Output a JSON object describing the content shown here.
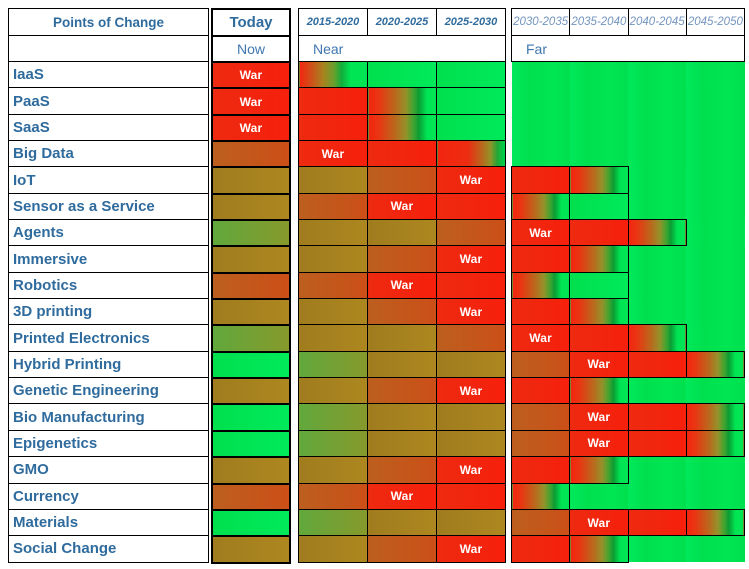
{
  "header": {
    "points_of_change": "Points of Change",
    "today": "Today",
    "now": "Now",
    "near": "Near",
    "far": "Far"
  },
  "war_label": "War",
  "colors": {
    "war_red": "#F3250F",
    "peace_green": "#00E554",
    "olive": "#A8831F",
    "orange": "#C5571D",
    "green_olive": "#6FA335",
    "label_blue": "#2F6B9D",
    "zone_blue": "#3F77AF",
    "far_header_blue": "#7395BF",
    "border_black": "#000000"
  },
  "chart_data": {
    "type": "heatmap",
    "title": "Points of Change",
    "legend": "red = War, green = peace; cells shade from green through olive/orange to red approaching a War period",
    "near_columns": [
      "2015-2020",
      "2020-2025",
      "2025-2030"
    ],
    "far_columns": [
      "2030-2035",
      "2035-2040",
      "2040-2045",
      "2045-2050"
    ],
    "rows": [
      {
        "label": "IaaS",
        "today": {
          "bg": "war-red",
          "war": true
        },
        "near": [
          {
            "bg": "grad-rg-early"
          },
          {
            "bg": "green"
          },
          {
            "bg": "green"
          }
        ],
        "far": [
          {
            "bg": "field"
          },
          {
            "bg": "field"
          },
          {
            "bg": "field"
          },
          {
            "bg": "field"
          }
        ]
      },
      {
        "label": "PaaS",
        "today": {
          "bg": "war-red",
          "war": true
        },
        "near": [
          {
            "bg": "war-red"
          },
          {
            "bg": "grad-rg"
          },
          {
            "bg": "green"
          }
        ],
        "far": [
          {
            "bg": "field"
          },
          {
            "bg": "field"
          },
          {
            "bg": "field"
          },
          {
            "bg": "field"
          }
        ]
      },
      {
        "label": "SaaS",
        "today": {
          "bg": "war-red",
          "war": true
        },
        "near": [
          {
            "bg": "war-red"
          },
          {
            "bg": "grad-rg"
          },
          {
            "bg": "green"
          }
        ],
        "far": [
          {
            "bg": "field"
          },
          {
            "bg": "field"
          },
          {
            "bg": "field"
          },
          {
            "bg": "field"
          }
        ]
      },
      {
        "label": "Big Data",
        "today": {
          "bg": "orange"
        },
        "near": [
          {
            "bg": "war-red",
            "war": true
          },
          {
            "bg": "war-red"
          },
          {
            "bg": "grad-rg-late"
          }
        ],
        "far": [
          {
            "bg": "field"
          },
          {
            "bg": "field"
          },
          {
            "bg": "field"
          },
          {
            "bg": "field"
          }
        ]
      },
      {
        "label": "IoT",
        "today": {
          "bg": "olive"
        },
        "near": [
          {
            "bg": "olive"
          },
          {
            "bg": "orange"
          },
          {
            "bg": "war-red",
            "war": true
          }
        ],
        "far": [
          {
            "bg": "war-red",
            "box": true
          },
          {
            "bg": "grad-rg",
            "box": true
          },
          {
            "bg": "field"
          },
          {
            "bg": "field"
          }
        ]
      },
      {
        "label": "Sensor as a Service",
        "today": {
          "bg": "olive"
        },
        "near": [
          {
            "bg": "orange"
          },
          {
            "bg": "war-red",
            "war": true
          },
          {
            "bg": "war-red"
          }
        ],
        "far": [
          {
            "bg": "grad-rg",
            "box": true
          },
          {
            "bg": "green",
            "box": true
          },
          {
            "bg": "field"
          },
          {
            "bg": "field"
          }
        ]
      },
      {
        "label": "Agents",
        "today": {
          "bg": "green-olive"
        },
        "near": [
          {
            "bg": "olive"
          },
          {
            "bg": "olive"
          },
          {
            "bg": "orange"
          }
        ],
        "far": [
          {
            "bg": "war-red",
            "war": true,
            "box": true
          },
          {
            "bg": "war-red",
            "box": true
          },
          {
            "bg": "grad-rg",
            "box": true
          },
          {
            "bg": "field"
          }
        ]
      },
      {
        "label": "Immersive",
        "today": {
          "bg": "olive"
        },
        "near": [
          {
            "bg": "olive"
          },
          {
            "bg": "orange"
          },
          {
            "bg": "war-red",
            "war": true
          }
        ],
        "far": [
          {
            "bg": "war-red",
            "box": true
          },
          {
            "bg": "grad-rg",
            "box": true
          },
          {
            "bg": "field"
          },
          {
            "bg": "field"
          }
        ]
      },
      {
        "label": "Robotics",
        "today": {
          "bg": "orange"
        },
        "near": [
          {
            "bg": "orange"
          },
          {
            "bg": "war-red",
            "war": true
          },
          {
            "bg": "war-red"
          }
        ],
        "far": [
          {
            "bg": "grad-rg",
            "box": true
          },
          {
            "bg": "green",
            "box": true
          },
          {
            "bg": "field"
          },
          {
            "bg": "field"
          }
        ]
      },
      {
        "label": "3D printing",
        "today": {
          "bg": "olive"
        },
        "near": [
          {
            "bg": "olive"
          },
          {
            "bg": "orange"
          },
          {
            "bg": "war-red",
            "war": true
          }
        ],
        "far": [
          {
            "bg": "war-red",
            "box": true
          },
          {
            "bg": "grad-rg",
            "box": true
          },
          {
            "bg": "field"
          },
          {
            "bg": "field"
          }
        ]
      },
      {
        "label": "Printed Electronics",
        "today": {
          "bg": "green-olive"
        },
        "near": [
          {
            "bg": "olive"
          },
          {
            "bg": "olive"
          },
          {
            "bg": "orange"
          }
        ],
        "far": [
          {
            "bg": "war-red",
            "war": true,
            "box": true
          },
          {
            "bg": "war-red",
            "box": true
          },
          {
            "bg": "grad-rg",
            "box": true
          },
          {
            "bg": "field"
          }
        ]
      },
      {
        "label": "Hybrid Printing",
        "today": {
          "bg": "green"
        },
        "near": [
          {
            "bg": "green-olive"
          },
          {
            "bg": "olive"
          },
          {
            "bg": "olive"
          }
        ],
        "far": [
          {
            "bg": "orange",
            "box": true
          },
          {
            "bg": "war-red",
            "war": true,
            "box": true
          },
          {
            "bg": "war-red",
            "box": true
          },
          {
            "bg": "grad-rg",
            "box": true
          }
        ]
      },
      {
        "label": "Genetic Engineering",
        "today": {
          "bg": "olive"
        },
        "near": [
          {
            "bg": "olive"
          },
          {
            "bg": "orange"
          },
          {
            "bg": "war-red",
            "war": true
          }
        ],
        "far": [
          {
            "bg": "war-red",
            "box": true
          },
          {
            "bg": "grad-rg",
            "box": true
          },
          {
            "bg": "field"
          },
          {
            "bg": "field"
          }
        ]
      },
      {
        "label": "Bio Manufacturing",
        "today": {
          "bg": "green"
        },
        "near": [
          {
            "bg": "green-olive"
          },
          {
            "bg": "olive"
          },
          {
            "bg": "olive"
          }
        ],
        "far": [
          {
            "bg": "orange",
            "box": true
          },
          {
            "bg": "war-red",
            "war": true,
            "box": true
          },
          {
            "bg": "war-red",
            "box": true
          },
          {
            "bg": "grad-rg",
            "box": true
          }
        ]
      },
      {
        "label": "Epigenetics",
        "today": {
          "bg": "green"
        },
        "near": [
          {
            "bg": "green-olive"
          },
          {
            "bg": "olive"
          },
          {
            "bg": "olive"
          }
        ],
        "far": [
          {
            "bg": "orange",
            "box": true
          },
          {
            "bg": "war-red",
            "war": true,
            "box": true
          },
          {
            "bg": "war-red",
            "box": true
          },
          {
            "bg": "grad-rg",
            "box": true
          }
        ]
      },
      {
        "label": "GMO",
        "today": {
          "bg": "olive"
        },
        "near": [
          {
            "bg": "olive"
          },
          {
            "bg": "orange"
          },
          {
            "bg": "war-red",
            "war": true
          }
        ],
        "far": [
          {
            "bg": "war-red",
            "box": true
          },
          {
            "bg": "grad-rg",
            "box": true
          },
          {
            "bg": "field"
          },
          {
            "bg": "field"
          }
        ]
      },
      {
        "label": "Currency",
        "today": {
          "bg": "orange"
        },
        "near": [
          {
            "bg": "orange"
          },
          {
            "bg": "war-red",
            "war": true
          },
          {
            "bg": "war-red"
          }
        ],
        "far": [
          {
            "bg": "grad-rg",
            "box": true
          },
          {
            "bg": "field"
          },
          {
            "bg": "field"
          },
          {
            "bg": "field"
          }
        ]
      },
      {
        "label": "Materials",
        "today": {
          "bg": "green"
        },
        "near": [
          {
            "bg": "green-olive"
          },
          {
            "bg": "olive"
          },
          {
            "bg": "olive"
          }
        ],
        "far": [
          {
            "bg": "orange",
            "box": true
          },
          {
            "bg": "war-red",
            "war": true,
            "box": true
          },
          {
            "bg": "war-red",
            "box": true
          },
          {
            "bg": "grad-rg",
            "box": true
          }
        ]
      },
      {
        "label": "Social Change",
        "today": {
          "bg": "olive"
        },
        "near": [
          {
            "bg": "olive"
          },
          {
            "bg": "orange"
          },
          {
            "bg": "war-red",
            "war": true
          }
        ],
        "far": [
          {
            "bg": "war-red",
            "box": true
          },
          {
            "bg": "grad-rg",
            "box": true
          },
          {
            "bg": "field"
          },
          {
            "bg": "field"
          }
        ]
      }
    ]
  }
}
